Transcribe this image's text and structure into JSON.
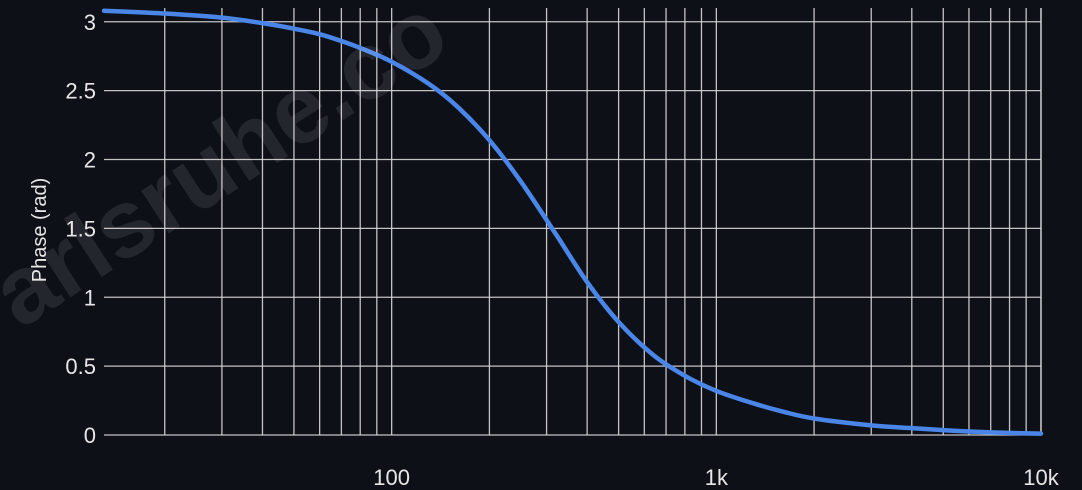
{
  "chart_data": {
    "type": "line",
    "title": "",
    "xlabel": "",
    "ylabel": "Phase (rad)",
    "x_scale": "log",
    "xlim": [
      13,
      10000
    ],
    "ylim": [
      0,
      3.1
    ],
    "grid": true,
    "x_tick_labels": [
      "100",
      "1k",
      "10k"
    ],
    "x_tick_values": [
      100,
      1000,
      10000
    ],
    "y_tick_labels": [
      "0",
      "0.5",
      "1",
      "1.5",
      "2",
      "2.5",
      "3"
    ],
    "y_tick_values": [
      0,
      0.5,
      1,
      1.5,
      2,
      2.5,
      3
    ],
    "series": [
      {
        "color": "#4a86e8",
        "x": [
          13,
          20,
          30,
          40,
          50,
          60,
          70,
          80,
          100,
          130,
          160,
          200,
          250,
          320,
          400,
          500,
          640,
          800,
          1000,
          1300,
          1600,
          2000,
          3000,
          4000,
          5000,
          6000,
          8000,
          10000
        ],
        "y": [
          3.08,
          3.06,
          3.03,
          2.99,
          2.95,
          2.91,
          2.86,
          2.81,
          2.71,
          2.55,
          2.38,
          2.14,
          1.84,
          1.46,
          1.11,
          0.82,
          0.58,
          0.43,
          0.32,
          0.23,
          0.17,
          0.12,
          0.07,
          0.05,
          0.035,
          0.025,
          0.015,
          0.01
        ]
      }
    ]
  },
  "watermark": {
    "text": "arlsruhe.co"
  }
}
